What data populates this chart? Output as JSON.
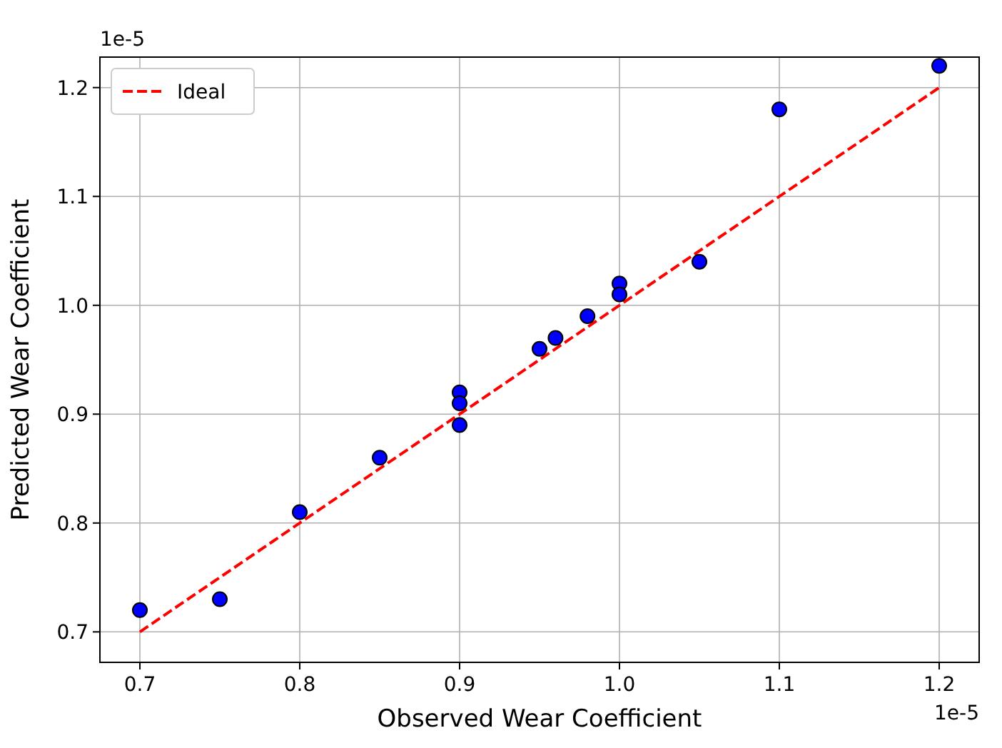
{
  "chart_data": {
    "type": "scatter",
    "xlabel": "Observed Wear Coefficient",
    "ylabel": "Predicted Wear Coefficient",
    "annotations": [
      "1e-5",
      "1e-5"
    ],
    "series": [
      {
        "name": "Ideal",
        "type": "line",
        "color": "#ff0000",
        "line_style": "dashed",
        "x": [
          0.7,
          1.2
        ],
        "values": [
          0.7,
          1.2
        ]
      },
      {
        "color": "#0000ff",
        "marker": "circle",
        "x": [
          0.7,
          0.75,
          0.8,
          0.85,
          0.9,
          0.9,
          0.9,
          0.95,
          0.96,
          0.98,
          1.0,
          1.0,
          1.05,
          1.1,
          1.2
        ],
        "values": [
          0.72,
          0.73,
          0.81,
          0.86,
          0.92,
          0.91,
          0.89,
          0.96,
          0.97,
          0.99,
          1.02,
          1.01,
          1.04,
          1.18,
          1.22
        ]
      }
    ],
    "xlim": [
      0.675,
      1.225
    ],
    "ylim": [
      0.672,
      1.228
    ],
    "xticks": [
      {
        "value": 0.7,
        "label": "0.7"
      },
      {
        "value": 0.8,
        "label": "0.8"
      },
      {
        "value": 0.9,
        "label": "0.9"
      },
      {
        "value": 1.0,
        "label": "1.0"
      },
      {
        "value": 1.1,
        "label": "1.1"
      },
      {
        "value": 1.2,
        "label": "1.2"
      }
    ],
    "yticks": [
      {
        "value": 0.7,
        "label": "0.7"
      },
      {
        "value": 0.8,
        "label": "0.8"
      },
      {
        "value": 0.9,
        "label": "0.9"
      },
      {
        "value": 1.0,
        "label": "1.0"
      },
      {
        "value": 1.1,
        "label": "1.1"
      },
      {
        "value": 1.2,
        "label": "1.2"
      }
    ],
    "grid": true,
    "legend": "top left"
  }
}
